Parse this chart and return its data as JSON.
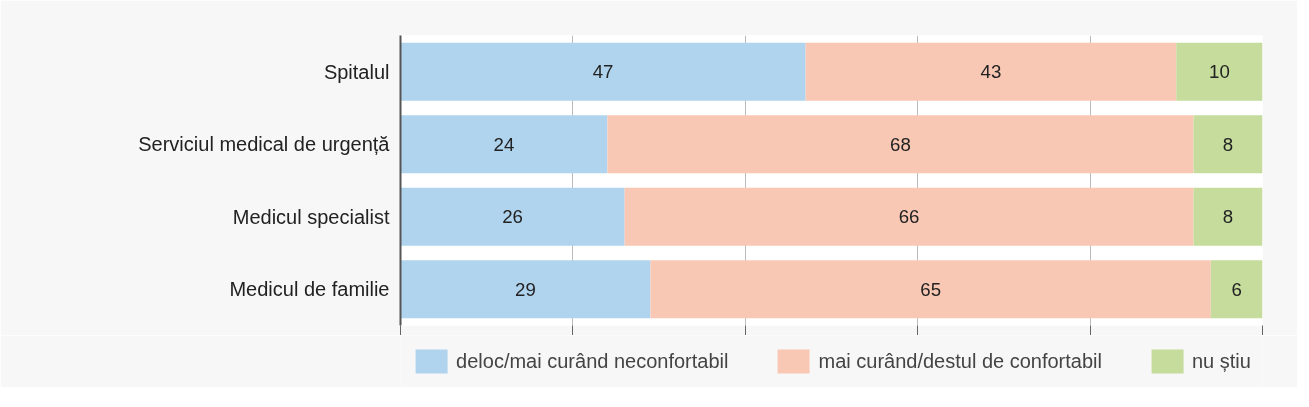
{
  "chart_data": {
    "type": "bar",
    "orientation": "horizontal",
    "stacked": true,
    "categories": [
      "Spitalul",
      "Serviciul medical de urgență",
      "Medicul specialist",
      "Medicul de familie"
    ],
    "series": [
      {
        "name": "deloc/mai curând neconfortabil",
        "color": "#b0d4ee",
        "values": [
          47,
          24,
          26,
          29
        ]
      },
      {
        "name": "mai curând/destul de confortabil",
        "color": "#f9c8b4",
        "values": [
          43,
          68,
          66,
          65
        ]
      },
      {
        "name": "nu știu",
        "color": "#c5dc9c",
        "values": [
          10,
          8,
          8,
          6
        ]
      }
    ],
    "xlim": [
      0,
      100
    ],
    "xticks": [
      {
        "value": 0,
        "label": null
      },
      {
        "value": 20,
        "label": null
      },
      {
        "value": 40,
        "label": null
      },
      {
        "value": 60,
        "label": null
      },
      {
        "value": 80,
        "label": null
      },
      {
        "value": 100,
        "label": null
      }
    ],
    "tick_labels": "y",
    "grid": "x",
    "legend": "bottom",
    "data_labels": true
  }
}
